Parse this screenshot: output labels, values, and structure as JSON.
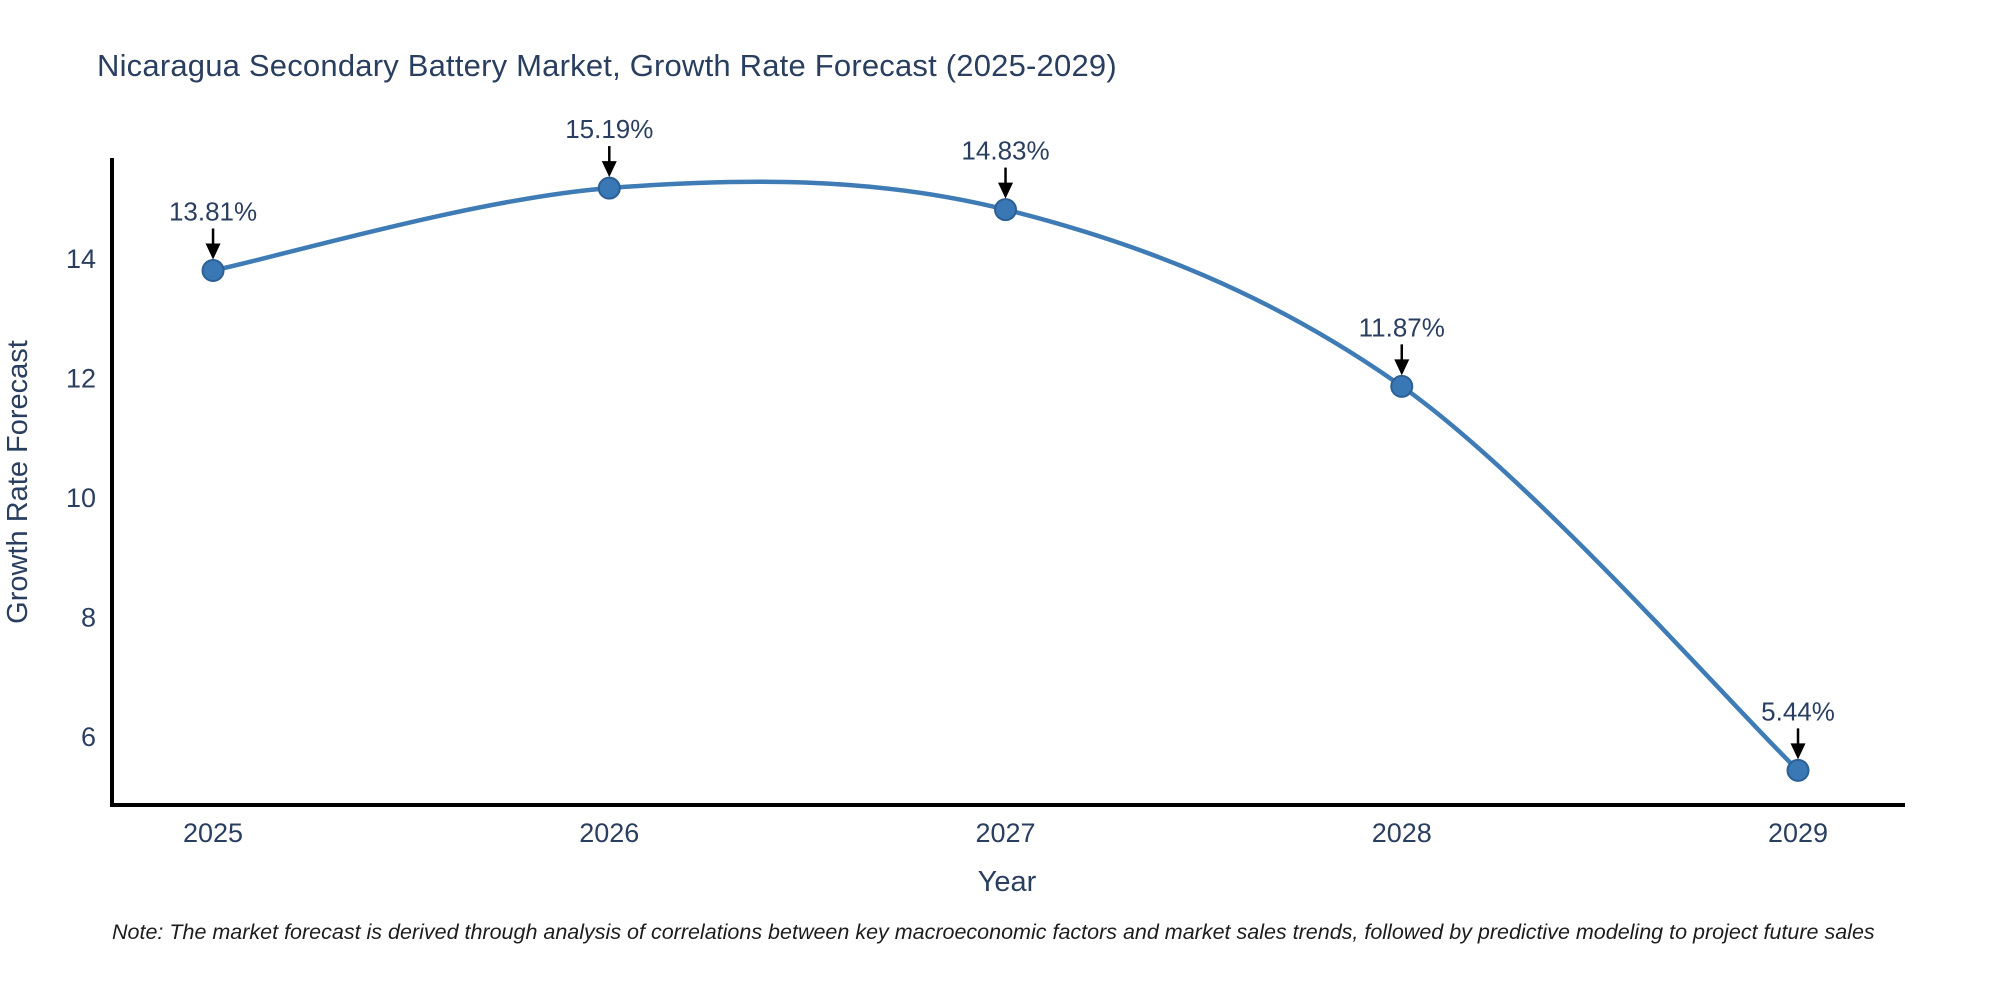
{
  "title": "Nicaragua Secondary Battery Market, Growth Rate Forecast (2025-2029)",
  "note": "Note: The market forecast is derived through analysis of correlations between key macroeconomic factors and market sales trends, followed by predictive modeling to project future sales",
  "colors": {
    "text": "#2a3f5f",
    "note_text": "#1c1c1c",
    "line": "#3f7cb6",
    "marker_fill": "#3a78b5",
    "marker_edge": "#2c6095",
    "axis": "#000000",
    "arrow": "#000000",
    "background": "#ffffff"
  },
  "chart_data": {
    "type": "line",
    "title": "Nicaragua Secondary Battery Market, Growth Rate Forecast (2025-2029)",
    "x": [
      2025,
      2026,
      2027,
      2028,
      2029
    ],
    "values": [
      13.81,
      15.19,
      14.83,
      11.87,
      5.44
    ],
    "point_labels": [
      "13.81%",
      "15.19%",
      "14.83%",
      "11.87%",
      "5.44%"
    ],
    "xlabel": "Year",
    "ylabel": "Growth Rate Forecast",
    "xticks": [
      "2025",
      "2026",
      "2027",
      "2028",
      "2029"
    ],
    "xtick_values": [
      2025,
      2026,
      2027,
      2028,
      2029
    ],
    "yticks": [
      6,
      8,
      10,
      12,
      14
    ],
    "xlim": [
      2024.745,
      2029.27
    ],
    "ylim": [
      4.86,
      15.66
    ],
    "line_shape": "spline",
    "markers": true,
    "grid": false,
    "legend": false,
    "annotation_arrows": true
  }
}
